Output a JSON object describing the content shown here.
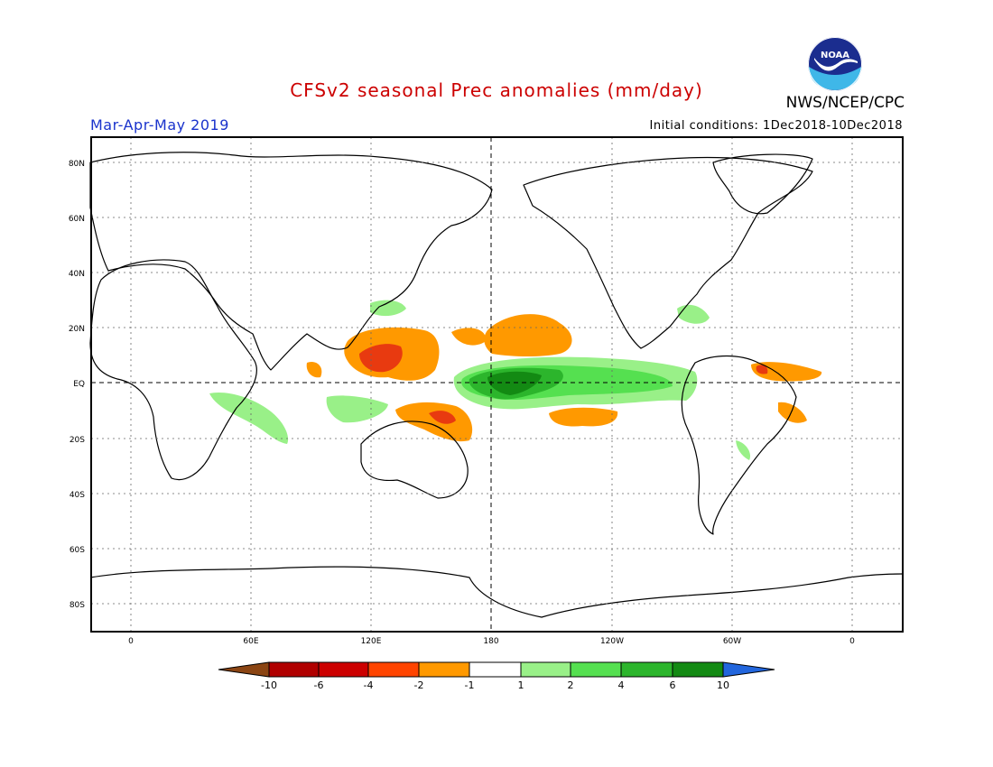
{
  "header": {
    "title": "CFSv2 seasonal Prec anomalies (mm/day)",
    "agency": "NWS/NCEP/CPC",
    "season": "Mar-Apr-May 2019",
    "initial_conditions": "Initial conditions: 1Dec2018-10Dec2018",
    "logo_text": "NOAA"
  },
  "colors": {
    "title": "#cc0000",
    "season": "#1a33cc",
    "dry_strong": "#c80000",
    "dry_mid": "#e83a10",
    "dry_light": "#ff9900",
    "wet_light": "#99f088",
    "wet_mid": "#55e050",
    "wet_strong": "#22a822",
    "wet_darkest": "#0c8a0c"
  },
  "map": {
    "lat_labels": [
      "80N",
      "60N",
      "40N",
      "20N",
      "EQ",
      "20S",
      "40S",
      "60S",
      "80S"
    ],
    "lon_labels": [
      "0",
      "60E",
      "120E",
      "180",
      "120W",
      "60W",
      "0"
    ]
  },
  "colorbar": {
    "labels": [
      "-10",
      "-6",
      "-4",
      "-2",
      "-1",
      "1",
      "2",
      "4",
      "6",
      "10"
    ],
    "colors": [
      "#8b4513",
      "#b00000",
      "#cc0000",
      "#ff4400",
      "#ff9900",
      "#ffffff",
      "#99f088",
      "#55e050",
      "#2cb52c",
      "#138a13",
      "#2266dd"
    ]
  }
}
